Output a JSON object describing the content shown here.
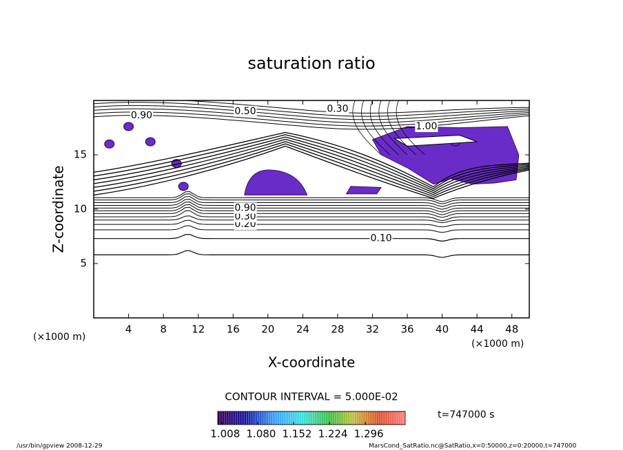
{
  "chart_data": {
    "type": "contour",
    "title": "saturation ratio",
    "x_label": "X-coordinate",
    "y_label": "Z-coordinate",
    "x_unit": "(×1000 m)",
    "xlim": [
      0,
      50
    ],
    "xticks": [
      4,
      8,
      12,
      16,
      20,
      24,
      28,
      32,
      36,
      40,
      44,
      48
    ],
    "ylim": [
      0,
      20
    ],
    "yticks": [
      5,
      10,
      15
    ],
    "contour_labels": [
      {
        "label": "0.10",
        "value": 0.1,
        "x": 33,
        "z": 7.3
      },
      {
        "label": "0.20",
        "value": 0.2,
        "x": 17.4,
        "z": 8.6
      },
      {
        "label": "0.30",
        "value": 0.3,
        "x": 17.4,
        "z": 9.3
      },
      {
        "label": "0.90",
        "value": 0.9,
        "x": 17.4,
        "z": 10.1
      },
      {
        "label": "0.50",
        "value": 0.5,
        "x": 17.4,
        "z": 19.0
      },
      {
        "label": "0.30",
        "value": 0.3,
        "x": 28,
        "z": 19.2
      },
      {
        "label": "0.90",
        "value": 0.9,
        "x": 5.5,
        "z": 18.6
      },
      {
        "label": "1.00",
        "value": 1.0,
        "x": 38.2,
        "z": 17.6
      }
    ],
    "contour_interval": "CONTOUR INTERVAL = 5.000E-02",
    "colorbar": {
      "lim": [
        1.0,
        1.376
      ],
      "ticks": [
        1.008,
        {
          "value": 1.08,
          "label": "1.080"
        },
        1.152,
        1.224,
        1.296
      ]
    },
    "time_label": "t=747000 s",
    "footer_left": "/usr/bin/gpview  2008-12-29",
    "footer_right": "MarsCond_SatRatio.nc@SatRatio,x=0:50000,z=0:20000,t=747000"
  }
}
